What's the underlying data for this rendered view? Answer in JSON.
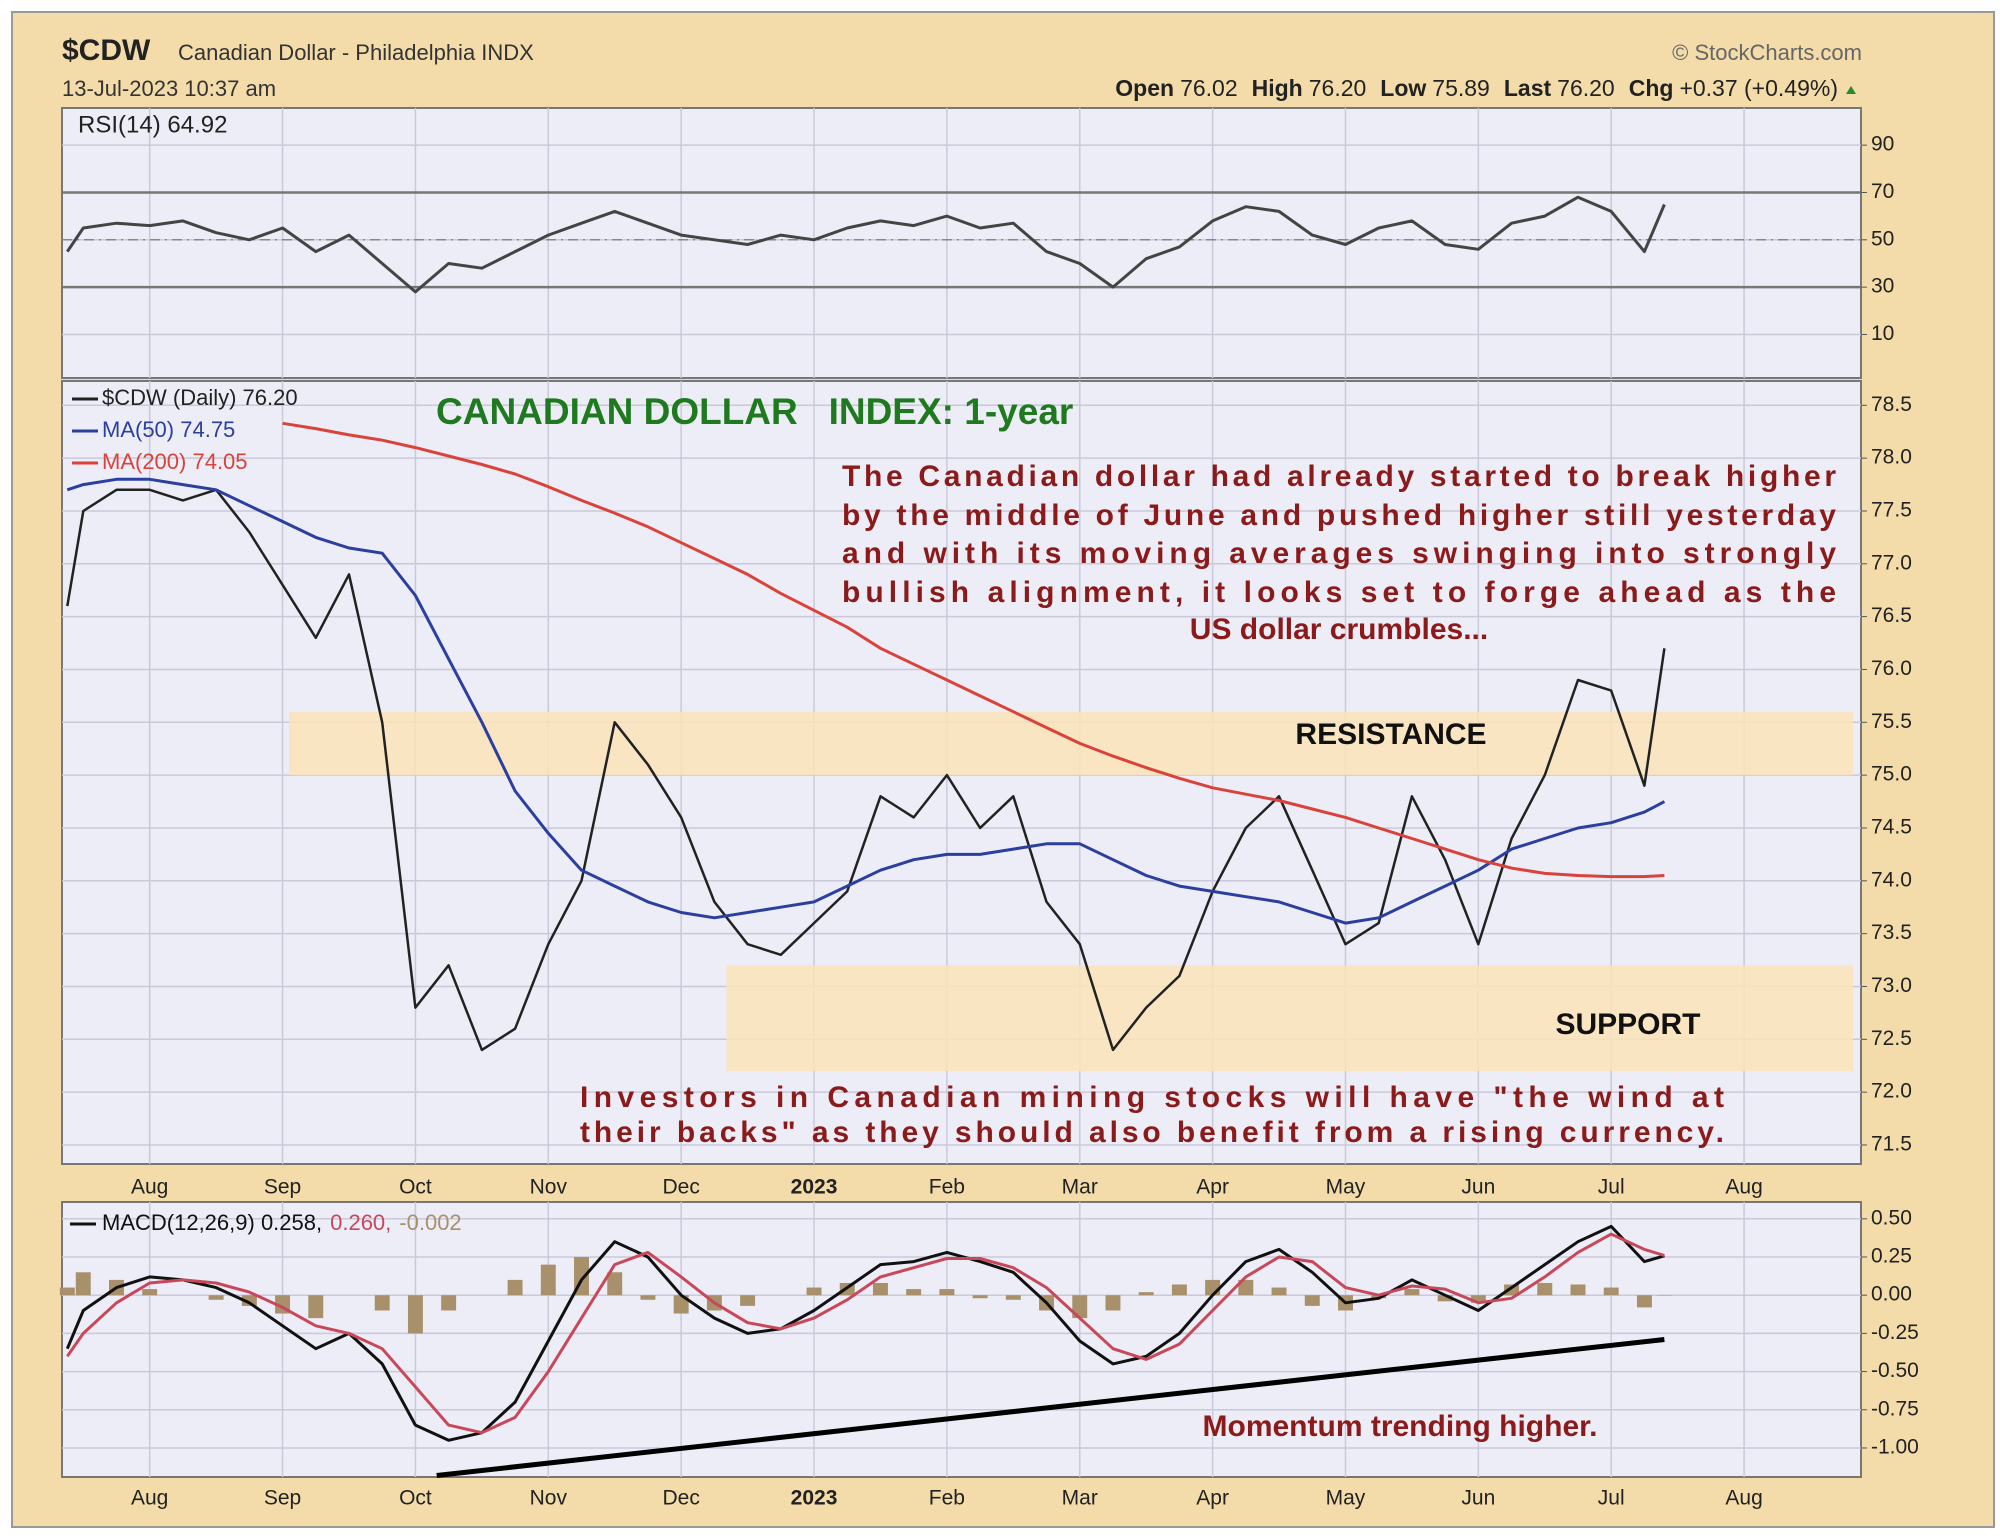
{
  "header": {
    "symbol": "$CDW",
    "name": "Canadian Dollar - Philadelphia INDX",
    "source": "© StockCharts.com",
    "timestamp": "13-Jul-2023 10:37 am",
    "quote": [
      {
        "label": "Open",
        "value": "76.02"
      },
      {
        "label": "High",
        "value": "76.20"
      },
      {
        "label": "Low",
        "value": "75.89"
      },
      {
        "label": "Last",
        "value": "76.20"
      },
      {
        "label": "Chg",
        "value": "+0.37 (+0.49%)"
      }
    ]
  },
  "chart_data": [
    {
      "type": "line",
      "xlim": [
        -0.66,
        12.88
      ],
      "ylim": [
        -8.4,
        105.7
      ],
      "yticks": [
        10,
        30,
        50,
        70,
        90
      ],
      "grid": true,
      "ref_lines": [
        30,
        70
      ],
      "midline": 50,
      "x": [
        -0.62,
        -0.5,
        -0.25,
        0,
        0.25,
        0.5,
        0.75,
        1,
        1.25,
        1.5,
        1.75,
        2,
        2.25,
        2.5,
        2.75,
        3,
        3.25,
        3.5,
        3.75,
        4,
        4.25,
        4.5,
        4.75,
        5,
        5.25,
        5.5,
        5.75,
        6,
        6.25,
        6.5,
        6.75,
        7,
        7.25,
        7.5,
        7.75,
        8,
        8.25,
        8.5,
        8.75,
        9,
        9.25,
        9.5,
        9.75,
        10,
        10.25,
        10.5,
        10.75,
        11,
        11.25,
        11.4
      ],
      "series": [
        {
          "name": "RSI(14) 64.92",
          "color": "#444444",
          "values": [
            45,
            55,
            57,
            56,
            58,
            53,
            50,
            55,
            45,
            52,
            40,
            28,
            40,
            38,
            45,
            52,
            57,
            62,
            57,
            52,
            50,
            48,
            52,
            50,
            55,
            58,
            56,
            60,
            55,
            57,
            45,
            40,
            30,
            42,
            47,
            58,
            64,
            62,
            52,
            48,
            55,
            58,
            48,
            46,
            57,
            60,
            68,
            62,
            45,
            64.92
          ]
        }
      ]
    },
    {
      "type": "line",
      "xlim": [
        -0.66,
        12.88
      ],
      "ylim": [
        71.32,
        78.73
      ],
      "yticks": [
        71.5,
        {
          "value": 72,
          "label": "72.0"
        },
        72.5,
        {
          "value": 73,
          "label": "73.0"
        },
        73.5,
        {
          "value": 74,
          "label": "74.0"
        },
        74.5,
        {
          "value": 75,
          "label": "75.0"
        },
        75.5,
        {
          "value": 76,
          "label": "76.0"
        },
        76.5,
        {
          "value": 77,
          "label": "77.0"
        },
        77.5,
        {
          "value": 78,
          "label": "78.0"
        },
        78.5
      ],
      "xticks": [
        {
          "value": 0,
          "label": "Aug"
        },
        {
          "value": 1,
          "label": "Sep"
        },
        {
          "value": 2,
          "label": "Oct"
        },
        {
          "value": 3,
          "label": "Nov"
        },
        {
          "value": 4,
          "label": "Dec"
        },
        {
          "value": 5,
          "label": "2023"
        },
        {
          "value": 6,
          "label": "Feb"
        },
        {
          "value": 7,
          "label": "Mar"
        },
        {
          "value": 8,
          "label": "Apr"
        },
        {
          "value": 9,
          "label": "May"
        },
        {
          "value": 10,
          "label": "Jun"
        },
        {
          "value": 11,
          "label": "Jul"
        },
        {
          "value": 12,
          "label": "Aug"
        }
      ],
      "grid": true,
      "title": "CANADIAN DOLLAR   INDEX: 1-year",
      "note_lines": [
        "The Canadian dollar had already started to break higher",
        "by the middle of June and pushed higher still yesterday",
        "and with its moving averages swinging into strongly",
        "bullish alignment, it looks set to forge ahead as the",
        "US dollar crumbles..."
      ],
      "footnote_lines": [
        "Investors in Canadian mining stocks will have \"the wind at",
        "their backs\" as they should also benefit from a rising currency."
      ],
      "bands": [
        {
          "label": "RESISTANCE",
          "from": 75.0,
          "to": 75.6,
          "x_from": 1.05
        },
        {
          "label": "SUPPORT",
          "from": 72.2,
          "to": 73.2,
          "x_from": 4.34
        }
      ],
      "x": [
        -0.62,
        -0.5,
        -0.25,
        0,
        0.25,
        0.5,
        0.75,
        1,
        1.25,
        1.5,
        1.75,
        2,
        2.25,
        2.5,
        2.75,
        3,
        3.25,
        3.5,
        3.75,
        4,
        4.25,
        4.5,
        4.75,
        5,
        5.25,
        5.5,
        5.75,
        6,
        6.25,
        6.5,
        6.75,
        7,
        7.25,
        7.5,
        7.75,
        8,
        8.25,
        8.5,
        8.75,
        9,
        9.25,
        9.5,
        9.75,
        10,
        10.25,
        10.5,
        10.75,
        11,
        11.25,
        11.4
      ],
      "series": [
        {
          "name": "$CDW (Daily) 76.20",
          "color": "#222222",
          "values": [
            76.6,
            77.5,
            77.7,
            77.7,
            77.6,
            77.7,
            77.3,
            76.8,
            76.3,
            76.9,
            75.5,
            72.8,
            73.2,
            72.4,
            72.6,
            73.4,
            74.0,
            75.5,
            75.1,
            74.6,
            73.8,
            73.4,
            73.3,
            73.6,
            73.9,
            74.8,
            74.6,
            75.0,
            74.5,
            74.8,
            73.8,
            73.4,
            72.4,
            72.8,
            73.1,
            73.9,
            74.5,
            74.8,
            74.1,
            73.4,
            73.6,
            74.8,
            74.2,
            73.4,
            74.4,
            75.0,
            75.9,
            75.8,
            74.9,
            76.2
          ]
        },
        {
          "name": "MA(50) 74.75",
          "color": "#2b3f9e",
          "values": [
            77.7,
            77.75,
            77.8,
            77.8,
            77.75,
            77.7,
            77.55,
            77.4,
            77.25,
            77.15,
            77.1,
            76.7,
            76.1,
            75.5,
            74.85,
            74.45,
            74.1,
            73.95,
            73.8,
            73.7,
            73.65,
            73.7,
            73.75,
            73.8,
            73.95,
            74.1,
            74.2,
            74.25,
            74.25,
            74.3,
            74.35,
            74.35,
            74.2,
            74.05,
            73.95,
            73.9,
            73.85,
            73.8,
            73.7,
            73.6,
            73.65,
            73.8,
            73.95,
            74.1,
            74.3,
            74.4,
            74.5,
            74.55,
            74.65,
            74.75
          ]
        },
        {
          "name": "MA(200) 74.05",
          "color": "#d9433b",
          "values": [
            null,
            null,
            null,
            null,
            null,
            null,
            null,
            78.33,
            78.28,
            78.22,
            78.17,
            78.1,
            78.02,
            77.94,
            77.85,
            77.73,
            77.6,
            77.48,
            77.35,
            77.2,
            77.05,
            76.9,
            76.72,
            76.56,
            76.4,
            76.2,
            76.05,
            75.9,
            75.75,
            75.6,
            75.45,
            75.3,
            75.18,
            75.07,
            74.97,
            74.88,
            74.82,
            74.76,
            74.68,
            74.6,
            74.5,
            74.4,
            74.3,
            74.2,
            74.12,
            74.07,
            74.05,
            74.04,
            74.04,
            74.05
          ]
        }
      ]
    },
    {
      "type": "line",
      "xlim": [
        -0.66,
        12.88
      ],
      "ylim": [
        -1.19,
        0.61
      ],
      "yticks": [
        {
          "value": -1,
          "label": "-1.00"
        },
        -0.75,
        {
          "value": -0.5,
          "label": "-0.50"
        },
        -0.25,
        {
          "value": 0,
          "label": "0.00"
        },
        0.25,
        {
          "value": 0.5,
          "label": "0.50"
        }
      ],
      "xticks": [
        {
          "value": 0,
          "label": "Aug"
        },
        {
          "value": 1,
          "label": "Sep"
        },
        {
          "value": 2,
          "label": "Oct"
        },
        {
          "value": 3,
          "label": "Nov"
        },
        {
          "value": 4,
          "label": "Dec"
        },
        {
          "value": 5,
          "label": "2023"
        },
        {
          "value": 6,
          "label": "Feb"
        },
        {
          "value": 7,
          "label": "Mar"
        },
        {
          "value": 8,
          "label": "Apr"
        },
        {
          "value": 9,
          "label": "May"
        },
        {
          "value": 10,
          "label": "Jun"
        },
        {
          "value": 11,
          "label": "Jul"
        },
        {
          "value": 12,
          "label": "Aug"
        }
      ],
      "grid": true,
      "annotation": "Momentum trending higher.",
      "trendline": {
        "x": [
          2.16,
          11.4
        ],
        "values": [
          -1.18,
          -0.29
        ]
      },
      "x": [
        -0.62,
        -0.5,
        -0.25,
        0,
        0.25,
        0.5,
        0.75,
        1,
        1.25,
        1.5,
        1.75,
        2,
        2.25,
        2.5,
        2.75,
        3,
        3.25,
        3.5,
        3.75,
        4,
        4.25,
        4.5,
        4.75,
        5,
        5.25,
        5.5,
        5.75,
        6,
        6.25,
        6.5,
        6.75,
        7,
        7.25,
        7.5,
        7.75,
        8,
        8.25,
        8.5,
        8.75,
        9,
        9.25,
        9.5,
        9.75,
        10,
        10.25,
        10.5,
        10.75,
        11,
        11.25,
        11.4
      ],
      "series": [
        {
          "name": "-0.002",
          "color": "#a8906a",
          "type": "bar",
          "values": [
            0.05,
            0.15,
            0.1,
            0.04,
            0,
            -0.03,
            -0.07,
            -0.12,
            -0.15,
            0,
            -0.1,
            -0.25,
            -0.1,
            0,
            0.1,
            0.2,
            0.25,
            0.15,
            -0.03,
            -0.12,
            -0.1,
            -0.07,
            0,
            0.05,
            0.08,
            0.08,
            0.04,
            0.04,
            -0.02,
            -0.03,
            -0.1,
            -0.15,
            -0.1,
            0.02,
            0.07,
            0.1,
            0.1,
            0.05,
            -0.07,
            -0.1,
            -0.02,
            0.04,
            -0.04,
            -0.05,
            0.07,
            0.08,
            0.07,
            0.05,
            -0.08,
            -0.002
          ]
        },
        {
          "name": "MACD(12,26,9) 0.258,",
          "color": "#111111",
          "values": [
            -0.35,
            -0.1,
            0.05,
            0.12,
            0.1,
            0.05,
            -0.05,
            -0.2,
            -0.35,
            -0.25,
            -0.45,
            -0.85,
            -0.95,
            -0.9,
            -0.7,
            -0.3,
            0.1,
            0.35,
            0.25,
            0,
            -0.15,
            -0.25,
            -0.22,
            -0.1,
            0.05,
            0.2,
            0.22,
            0.28,
            0.22,
            0.15,
            -0.05,
            -0.3,
            -0.45,
            -0.4,
            -0.25,
            0,
            0.22,
            0.3,
            0.15,
            -0.05,
            -0.02,
            0.1,
            0,
            -0.1,
            0.05,
            0.2,
            0.35,
            0.45,
            0.22,
            0.258
          ]
        },
        {
          "name": "0.260,",
          "color": "#c8485a",
          "values": [
            -0.4,
            -0.25,
            -0.05,
            0.08,
            0.1,
            0.08,
            0.02,
            -0.08,
            -0.2,
            -0.25,
            -0.35,
            -0.6,
            -0.85,
            -0.9,
            -0.8,
            -0.5,
            -0.15,
            0.2,
            0.28,
            0.12,
            -0.05,
            -0.18,
            -0.22,
            -0.15,
            -0.03,
            0.12,
            0.18,
            0.24,
            0.24,
            0.18,
            0.05,
            -0.15,
            -0.35,
            -0.42,
            -0.32,
            -0.1,
            0.12,
            0.25,
            0.22,
            0.05,
            0,
            0.06,
            0.04,
            -0.05,
            -0.02,
            0.12,
            0.28,
            0.4,
            0.3,
            0.26
          ]
        }
      ]
    }
  ]
}
